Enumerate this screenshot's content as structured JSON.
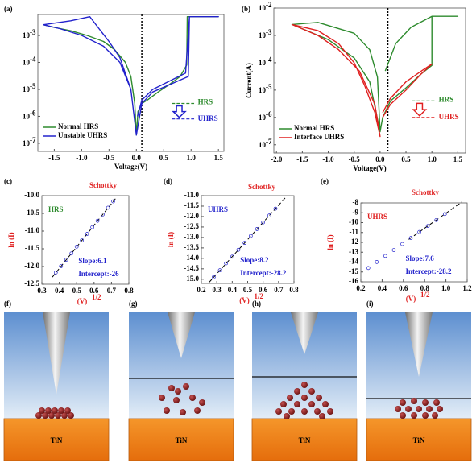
{
  "chart_data": [
    {
      "type": "line",
      "panel_label": "(a)",
      "xlabel": "Voltage(V)",
      "log_y": true,
      "legend": "lower left",
      "xlim": [
        -1.8,
        1.6
      ],
      "ylim": [
        5e-08,
        0.006
      ],
      "xticks": [
        -1.5,
        {
          "value": -1,
          "label": "-1.0"
        },
        -0.5,
        {
          "value": 0,
          "label": "0.0"
        },
        0.5,
        {
          "value": 1,
          "label": "1.0"
        },
        1.5
      ],
      "yticks": [
        {
          "value": 1e-07,
          "label": "10",
          "exponent": "-7"
        },
        {
          "value": 1e-06,
          "label": "10",
          "exponent": "-6"
        },
        {
          "value": 1e-05,
          "label": "10",
          "exponent": "-5"
        },
        {
          "value": 0.0001,
          "label": "10",
          "exponent": "-4"
        },
        {
          "value": 0.001,
          "label": "10",
          "exponent": "-3"
        }
      ],
      "vline": 0.1,
      "series": [
        {
          "name": "Normal HRS",
          "color": "#2e8b2e",
          "x": [
            -1.7,
            -1.5,
            -1.2,
            -0.9,
            -0.6,
            -0.4,
            -0.2,
            -0.1,
            -0.03,
            0,
            0.03,
            0.1,
            0.2,
            0.4,
            0.6,
            0.8,
            0.92,
            0.93,
            1.0,
            1.4,
            1.5
          ],
          "values": [
            0.0025,
            0.002,
            0.0015,
            0.001,
            0.0006,
            0.0003,
            0.0001,
            3e-05,
            3e-06,
            2e-07,
            1.5e-06,
            3e-06,
            4e-06,
            8e-06,
            1.5e-05,
            3e-05,
            8e-05,
            0.005,
            0.005,
            0.005,
            0.005
          ]
        },
        {
          "name": "Unstable UHRS",
          "color": "#2222cc",
          "x": [
            0,
            -0.1,
            -0.3,
            -0.6,
            -1.0,
            -1.4,
            -1.7,
            -1.2,
            -0.85,
            -0.7,
            -0.5,
            -0.3,
            -0.1,
            0,
            0.1,
            0.3,
            0.5,
            0.7,
            0.95,
            0.97,
            1.5,
            0.97,
            0.9,
            0.6,
            0.3,
            0.1,
            0.02
          ],
          "values": [
            2e-07,
            1e-05,
            0.0001,
            0.0004,
            0.001,
            0.0018,
            0.0025,
            0.0035,
            0.005,
            0.002,
            0.0006,
            0.00015,
            1e-05,
            2e-07,
            3e-06,
            8e-06,
            1.2e-05,
            1.8e-05,
            3e-05,
            0.005,
            0.005,
            0.005,
            4e-05,
            2e-05,
            1e-05,
            4e-06,
            1e-06
          ]
        }
      ],
      "annotations": [
        {
          "text": "HRS",
          "color": "#2e8b2e",
          "level": 3e-06
        },
        {
          "text": "UHRS",
          "color": "#2222cc",
          "level": 8e-07
        }
      ]
    },
    {
      "type": "line",
      "panel_label": "(b)",
      "xlabel": "Voltage(V)",
      "ylabel": "Current(A)",
      "log_y": true,
      "legend": "lower left",
      "xlim": [
        -2.05,
        1.65
      ],
      "ylim": [
        5e-08,
        0.01
      ],
      "xticks": [
        {
          "value": -2,
          "label": "-2.0"
        },
        -1.5,
        {
          "value": -1,
          "label": "-1.0"
        },
        -0.5,
        {
          "value": 0,
          "label": "0.0"
        },
        0.5,
        {
          "value": 1,
          "label": "1.0"
        },
        1.5
      ],
      "yticks": [
        {
          "value": 1e-07,
          "label": "10",
          "exponent": "-7"
        },
        {
          "value": 1e-06,
          "label": "10",
          "exponent": "-6"
        },
        {
          "value": 1e-05,
          "label": "10",
          "exponent": "-5"
        },
        {
          "value": 0.0001,
          "label": "10",
          "exponent": "-4"
        },
        {
          "value": 0.001,
          "label": "10",
          "exponent": "-3"
        },
        {
          "value": 0.01,
          "label": "10",
          "exponent": "-2"
        }
      ],
      "vline": 0.15,
      "series": [
        {
          "name": "Normal HRS",
          "color": "#2e8b2e",
          "x": [
            0,
            -0.05,
            -0.2,
            -0.5,
            -1.2,
            -1.7,
            -1.0,
            -0.5,
            -0.2,
            0,
            0.05,
            0.2,
            0.5,
            0.8,
            1.0,
            1.0,
            1.5,
            1.0,
            0.6,
            0.3,
            0.1
          ],
          "values": [
            3e-07,
            3e-05,
            0.0003,
            0.0012,
            0.003,
            0.0025,
            0.0007,
            0.00015,
            2e-05,
            3e-07,
            1e-06,
            4e-06,
            1.2e-05,
            4e-05,
            8e-05,
            0.005,
            0.005,
            0.005,
            0.002,
            0.0005,
            5e-05
          ]
        },
        {
          "name": "Interface UHRS",
          "color": "#e02020",
          "x": [
            -1.7,
            -1.2,
            -0.8,
            -0.5,
            -0.3,
            -0.1,
            0,
            -0.1,
            -0.4,
            -0.8,
            -1.2,
            -1.7,
            null,
            0.05,
            0.2,
            0.5,
            0.8,
            1.0,
            0.8,
            0.5,
            0.2,
            0.05
          ],
          "values": [
            0.0025,
            0.0015,
            0.0005,
            0.0001,
            1.5e-05,
            1.5e-06,
            2e-07,
            3e-06,
            5e-05,
            0.0003,
            0.001,
            0.0025,
            null,
            1e-06,
            3e-06,
            1e-05,
            4e-05,
            9e-05,
            5e-05,
            2e-05,
            5e-06,
            1.5e-06
          ]
        }
      ],
      "annotations": [
        {
          "text": "HRS",
          "color": "#2e8b2e",
          "level": 4e-06
        },
        {
          "text": "UHRS",
          "color": "#e02020",
          "level": 1e-06
        }
      ]
    },
    {
      "type": "scatter",
      "panel_label": "(c)",
      "title": "Schottky",
      "state": "HRS",
      "state_color": "#2e8b2e",
      "slope": "Slope:6.1",
      "intercept": "Intercept:-26",
      "ylabel": "ln (I)",
      "xlabel": "(V)",
      "xlabel_sup": "1/2",
      "xlim": [
        0.3,
        0.8
      ],
      "ylim": [
        -12.5,
        -10
      ],
      "xticks": [
        0.3,
        0.4,
        0.5,
        0.6,
        0.7,
        0.8
      ],
      "yticks": [
        {
          "value": -12.5,
          "label": "-12.5"
        },
        {
          "value": -12,
          "label": "-12.0"
        },
        -11.5,
        {
          "value": -11,
          "label": "-11.0"
        },
        -10.5,
        {
          "value": -10,
          "label": "-10.0"
        }
      ],
      "series": [
        {
          "color": "#2222cc",
          "x": [
            0.38,
            0.41,
            0.44,
            0.47,
            0.5,
            0.53,
            0.56,
            0.59,
            0.62,
            0.65,
            0.68,
            0.71
          ],
          "values": [
            -12.17,
            -11.99,
            -11.81,
            -11.63,
            -11.44,
            -11.26,
            -11.08,
            -10.89,
            -10.71,
            -10.53,
            -10.34,
            -10.16
          ]
        }
      ],
      "fit_line": {
        "color": "#000000",
        "x": [
          0.36,
          0.73
        ],
        "values": [
          -12.3,
          -10.04
        ]
      }
    },
    {
      "type": "scatter",
      "panel_label": "(d)",
      "title": "Schottky",
      "state": "UHRS",
      "state_color": "#2222cc",
      "slope": "Slope:8.2",
      "intercept": "Intercept:-28.2",
      "ylabel": "ln (I)",
      "xlabel": "(V)",
      "xlabel_sup": "1/2",
      "xlim": [
        0.2,
        0.8
      ],
      "ylim": [
        -15.2,
        -11
      ],
      "xticks": [
        0.2,
        0.3,
        0.4,
        0.5,
        0.6,
        0.7,
        0.8
      ],
      "yticks": [
        {
          "value": -15,
          "label": "-15.0"
        },
        -14.5,
        {
          "value": -14,
          "label": "-14.0"
        },
        -13.5,
        {
          "value": -13,
          "label": "-13.0"
        },
        -12.5,
        {
          "value": -12,
          "label": "-12.0"
        },
        -11.5,
        {
          "value": -11,
          "label": "-11.0"
        }
      ],
      "series": [
        {
          "color": "#2222cc",
          "x": [
            0.28,
            0.32,
            0.36,
            0.4,
            0.44,
            0.48,
            0.52,
            0.56,
            0.6,
            0.64,
            0.68
          ],
          "values": [
            -14.9,
            -14.57,
            -14.24,
            -13.92,
            -13.59,
            -13.26,
            -12.93,
            -12.6,
            -12.28,
            -11.95,
            -11.62
          ]
        }
      ],
      "fit_line": {
        "color": "#000000",
        "x": [
          0.25,
          0.75
        ],
        "values": [
          -15.15,
          -11.05
        ]
      }
    },
    {
      "type": "scatter",
      "panel_label": "(e)",
      "title": "Schottky",
      "state": "UHRS",
      "state_color": "#e02020",
      "slope": "Slope:7.6",
      "intercept": "Intercept:-28.2",
      "ylabel": "ln (I)",
      "xlabel": "(V)",
      "xlabel_sup": "1/2",
      "xlim": [
        0.2,
        1.2
      ],
      "ylim": [
        -16,
        -8
      ],
      "xticks": [
        0.2,
        0.4,
        0.6,
        0.8,
        {
          "value": 1,
          "label": "1.0"
        },
        1.2
      ],
      "yticks": [
        -16,
        -15,
        -14,
        -13,
        -12,
        -11,
        -10,
        -9,
        -8
      ],
      "series": [
        {
          "color": "#2222cc",
          "x": [
            0.27,
            0.35,
            0.43,
            0.51,
            0.59,
            0.67,
            0.75,
            0.83,
            0.91,
            0.99
          ],
          "values": [
            -14.6,
            -13.99,
            -13.38,
            -12.78,
            -12.17,
            -11.56,
            -10.95,
            -10.34,
            -9.74,
            -9.13
          ]
        }
      ],
      "fit_line": {
        "color": "#000000",
        "x": [
          0.65,
          1.15
        ],
        "values": [
          -11.71,
          -7.91
        ]
      }
    }
  ],
  "diagrams": [
    {
      "label": "(f)",
      "substrate": "TiN"
    },
    {
      "label": "(g)",
      "substrate": "TiN"
    },
    {
      "label": "(h)",
      "substrate": "TiN"
    },
    {
      "label": "(i)",
      "substrate": "TiN"
    }
  ]
}
